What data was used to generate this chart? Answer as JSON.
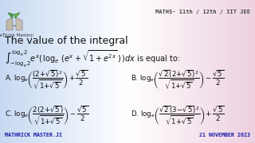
{
  "bg_gradient": true,
  "title_text": "The value of the integral",
  "header_text": "MATHS- 11th / 12th / IIT JEE",
  "footer_left": "MATHRICK MASTER.JI",
  "footer_right": "21 NOVEMBER 2023",
  "logo_text": "MaThrick Masterji",
  "text_color": "#111111",
  "header_color": "#444444",
  "footer_color": "#1a1aaa",
  "title_fontsize": 9.0,
  "header_fontsize": 5.0,
  "footer_fontsize": 4.8,
  "integral_fontsize": 7.0,
  "option_fontsize": 6.2
}
